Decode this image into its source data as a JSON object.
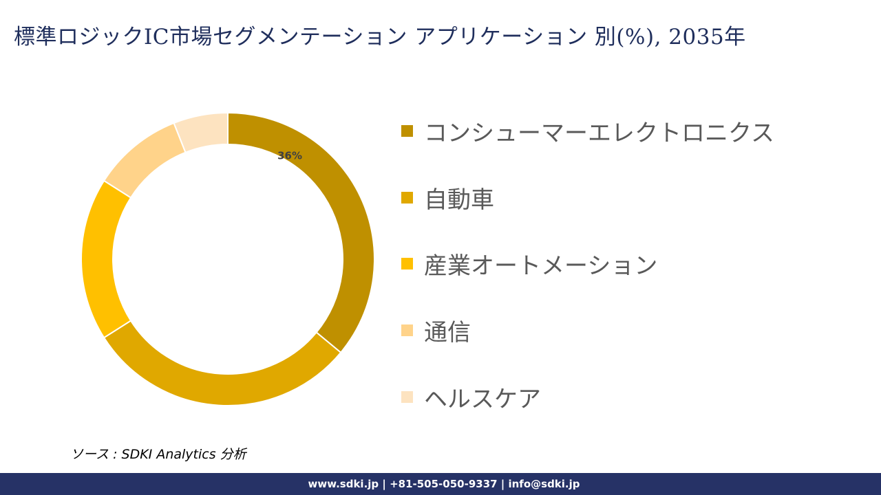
{
  "title": "標準ロジックIC市場セグメンテーション アプリケーション 別(%), 2035年",
  "chart_data": {
    "type": "pie",
    "style": "donut",
    "categories": [
      "コンシューマーエレクトロニクス",
      "自動車",
      "産業オートメーション",
      "通信",
      "ヘルスケア"
    ],
    "values": [
      36,
      30,
      18,
      10,
      6
    ],
    "colors": [
      "#bf9000",
      "#e0a800",
      "#ffc000",
      "#ffd38a",
      "#fde3c0"
    ],
    "data_labels": [
      "36%",
      "",
      "",
      "",
      ""
    ],
    "legend_position": "right"
  },
  "source": "ソース : SDKI Analytics 分析",
  "footer": "www.sdki.jp | +81-505-050-9337 | info@sdki.jp"
}
